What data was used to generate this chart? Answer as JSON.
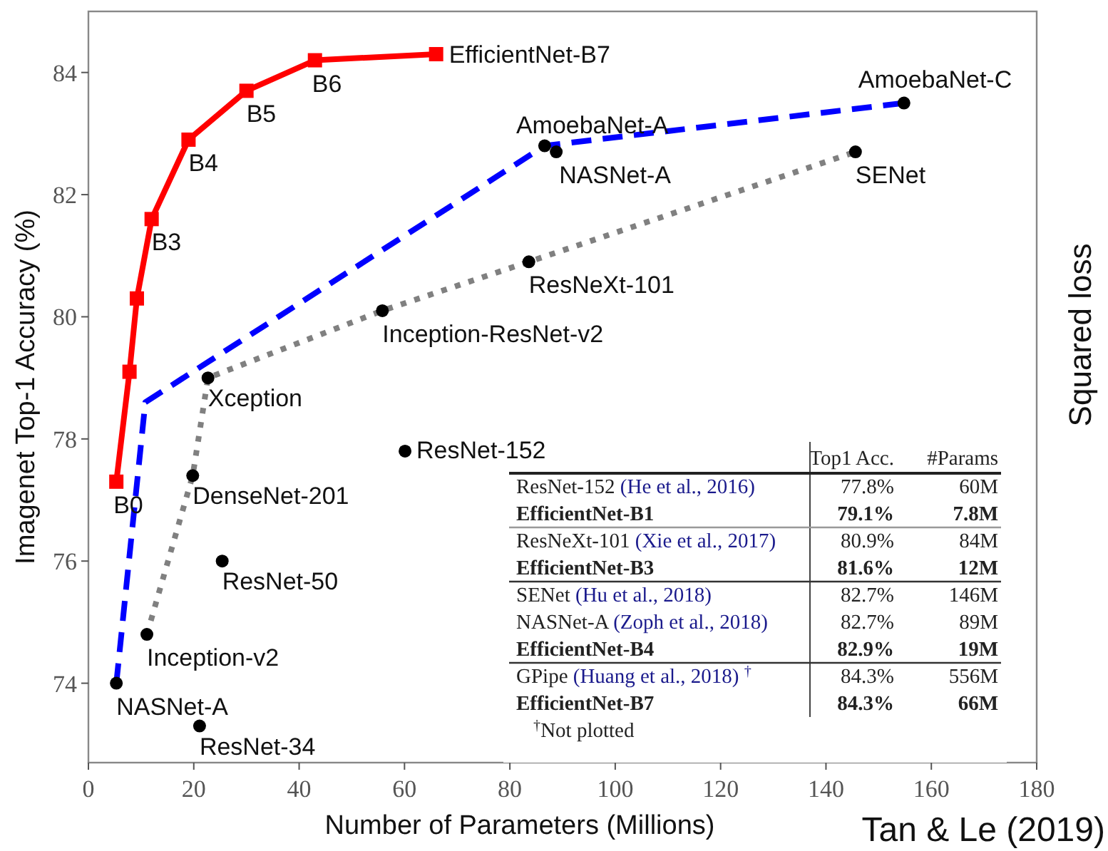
{
  "chart_data": {
    "type": "line",
    "xlabel": "Number of Parameters (Millions)",
    "ylabel": "Imagenet Top-1 Accuracy (%)",
    "xlim": [
      0,
      180
    ],
    "xticks": [
      0,
      20,
      40,
      60,
      80,
      100,
      120,
      140,
      160,
      180
    ],
    "ylim": [
      72.7,
      85
    ],
    "yticks": [
      74,
      76,
      78,
      80,
      82,
      84
    ],
    "grid": false,
    "series": [
      {
        "color": "#0000ff",
        "line_style": "dashed",
        "marker": "none",
        "x": [
          5.3,
          10.8,
          86.6,
          154.8
        ],
        "values": [
          74.0,
          78.6,
          82.8,
          83.5
        ]
      },
      {
        "color": "#808080",
        "line_style": "dotted",
        "marker": "none",
        "x": [
          11.1,
          19.8,
          22.7,
          55.8,
          83.6,
          145.6
        ],
        "values": [
          74.8,
          77.4,
          79.0,
          80.1,
          80.9,
          82.7
        ]
      },
      {
        "type": "scatter",
        "color": "#000000",
        "marker": "circle",
        "x": [
          5.3,
          86.6,
          154.8,
          11.1,
          19.8,
          22.7,
          55.8,
          83.6,
          145.6,
          88.8,
          60.1,
          25.4,
          21.1
        ],
        "values": [
          74.0,
          82.8,
          83.5,
          74.8,
          77.4,
          79.0,
          80.1,
          80.9,
          82.7,
          82.7,
          77.8,
          76.0,
          73.3
        ]
      },
      {
        "color": "#ff0000",
        "line_style": "solid",
        "marker": "square",
        "x": [
          5.3,
          7.8,
          9.2,
          12,
          19,
          30,
          43,
          66
        ],
        "values": [
          77.3,
          79.1,
          80.3,
          81.6,
          82.9,
          83.7,
          84.2,
          84.3
        ]
      }
    ],
    "annotations": [
      {
        "text": "B0",
        "x": 5.3,
        "y": 77.3
      },
      {
        "text": "B3",
        "x": 12,
        "y": 81.6
      },
      {
        "text": "B4",
        "x": 19,
        "y": 82.9
      },
      {
        "text": "B5",
        "x": 30,
        "y": 83.7
      },
      {
        "text": "B6",
        "x": 43,
        "y": 84.2
      },
      {
        "text": "EfficientNet-B7",
        "x": 66,
        "y": 84.3
      },
      {
        "text": "AmoebaNet-A",
        "x": 86.6,
        "y": 82.8
      },
      {
        "text": "NASNet-A",
        "x": 88.8,
        "y": 82.7
      },
      {
        "text": "AmoebaNet-C",
        "x": 154.8,
        "y": 83.5
      },
      {
        "text": "SENet",
        "x": 145.6,
        "y": 82.7
      },
      {
        "text": "ResNeXt-101",
        "x": 83.6,
        "y": 80.9
      },
      {
        "text": "Inception-ResNet-v2",
        "x": 55.8,
        "y": 80.1
      },
      {
        "text": "Xception",
        "x": 22.7,
        "y": 79.0
      },
      {
        "text": "ResNet-152",
        "x": 60.1,
        "y": 77.8
      },
      {
        "text": "DenseNet-201",
        "x": 19.8,
        "y": 77.4
      },
      {
        "text": "ResNet-50",
        "x": 25.4,
        "y": 76.0
      },
      {
        "text": "Inception-v2",
        "x": 11.1,
        "y": 74.8
      },
      {
        "text": "NASNet-A",
        "x": 5.3,
        "y": 74.0
      },
      {
        "text": "ResNet-34",
        "x": 21.1,
        "y": 73.3
      },
      "Squared loss",
      "Tan & Le (2019)",
      "Top1 Acc.",
      "#Params",
      "ResNet-152 (He et al., 2016)",
      "77.8%",
      "60M",
      "EfficientNet-B1",
      "79.1%",
      "7.8M",
      "ResNeXt-101 (Xie et al., 2017)",
      "80.9%",
      "84M",
      "EfficientNet-B3",
      "81.6%",
      "12M",
      "SENet (Hu et al., 2018)",
      "82.7%",
      "146M",
      "NASNet-A (Zoph et al., 2018)",
      "82.7%",
      "89M",
      "EfficientNet-B4",
      "82.9%",
      "19M",
      "GPipe (Huang et al., 2018) $^{†}$",
      "84.3%",
      "556M",
      "EfficientNet-B7",
      "84.3%",
      "66M",
      "$^{†}$Not plotted"
    ]
  }
}
